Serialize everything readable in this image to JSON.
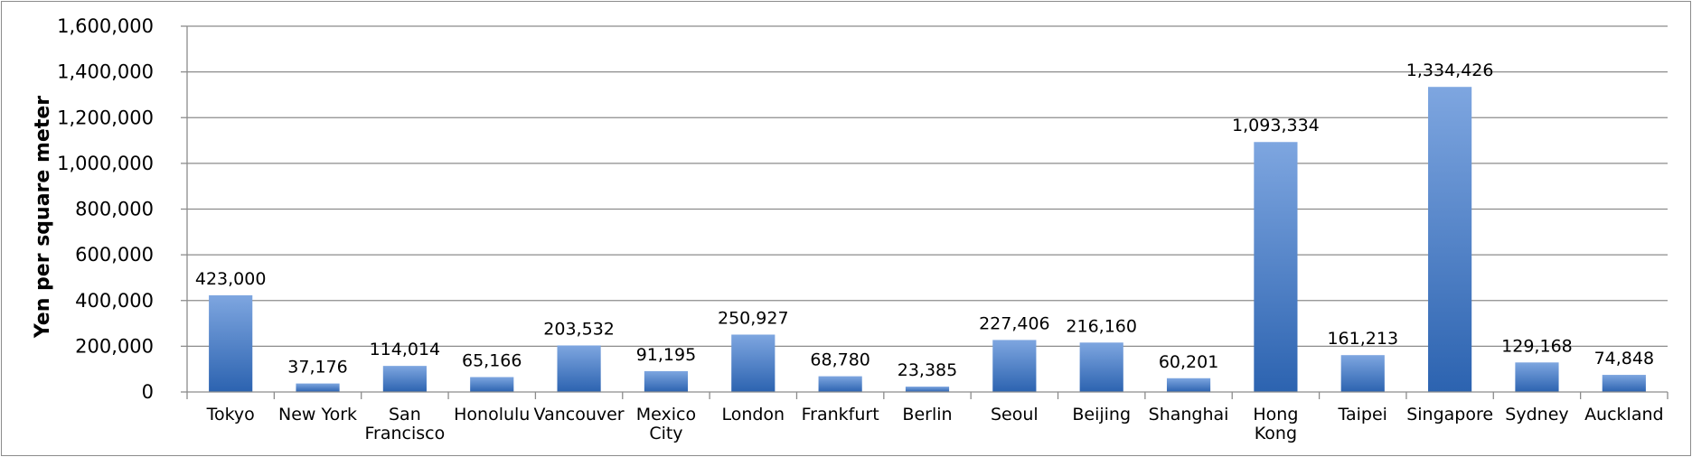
{
  "chart_data": {
    "type": "bar",
    "ylabel": "Yen per square meter",
    "ylim": [
      0,
      1600000
    ],
    "yticks": [
      "0",
      "200,000",
      "400,000",
      "600,000",
      "800,000",
      "1,000,000",
      "1,200,000",
      "1,400,000",
      "1,600,000"
    ],
    "grid": true,
    "categories": [
      [
        "Tokyo"
      ],
      [
        "New York"
      ],
      [
        "San",
        "Francisco"
      ],
      [
        "Honolulu"
      ],
      [
        "Vancouver"
      ],
      [
        "Mexico",
        "City"
      ],
      [
        "London"
      ],
      [
        "Frankfurt"
      ],
      [
        "Berlin"
      ],
      [
        "Seoul"
      ],
      [
        "Beijing"
      ],
      [
        "Shanghai"
      ],
      [
        "Hong",
        "Kong"
      ],
      [
        "Taipei"
      ],
      [
        "Singapore"
      ],
      [
        "Sydney"
      ],
      [
        "Auckland"
      ]
    ],
    "values": [
      423000,
      37176,
      114014,
      65166,
      203532,
      91195,
      250927,
      68780,
      23385,
      227406,
      216160,
      60201,
      1093334,
      161213,
      1334426,
      129168,
      74848
    ],
    "data_labels": [
      "423,000",
      "37,176",
      "114,014",
      "65,166",
      "203,532",
      "91,195",
      "250,927",
      "68,780",
      "23,385",
      "227,406",
      "216,160",
      "60,201",
      "1,093,334",
      "161,213",
      "1,334,426",
      "129,168",
      "74,848"
    ],
    "colors": {
      "bar_top": "#7ea6e0",
      "bar_bottom": "#2c63b0",
      "grid": "#8c8c8c",
      "axis": "#8c8c8c"
    }
  }
}
